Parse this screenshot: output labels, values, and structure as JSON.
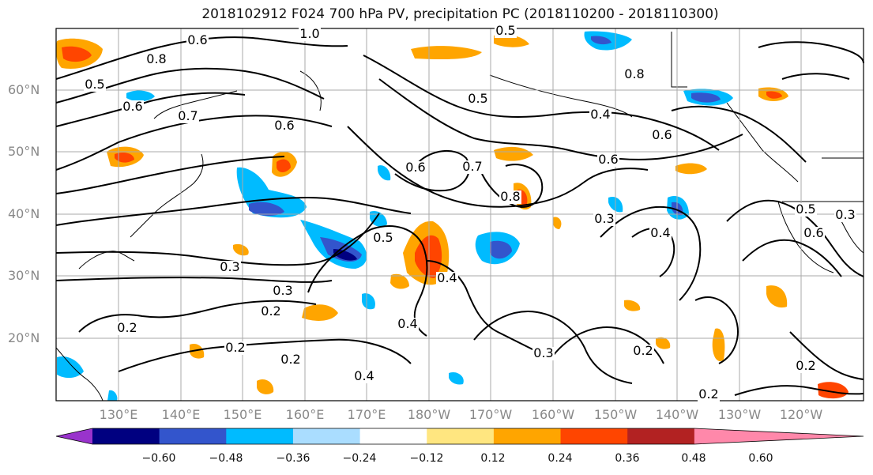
{
  "title": "2018102912 F024 700 hPa PV, precipitation PC (2018110200 - 2018110300)",
  "lat_labels": [
    "60°N",
    "50°N",
    "40°N",
    "30°N",
    "20°N"
  ],
  "lon_labels": [
    "130°E",
    "140°E",
    "150°E",
    "160°E",
    "170°E",
    "180°W",
    "170°W",
    "160°W",
    "150°W",
    "140°W",
    "130°W",
    "120°W"
  ],
  "contour_labels": [
    "1.0",
    "0.5",
    "0.8",
    "0.6",
    "0.5",
    "0.6",
    "0.7",
    "0.6",
    "0.4",
    "0.5",
    "0.6",
    "0.7",
    "0.8",
    "0.4",
    "0.8",
    "0.6",
    "0.5",
    "0.6",
    "0.3",
    "0.3",
    "0.4",
    "0.2",
    "0.3",
    "0.2",
    "0.2",
    "0.2",
    "0.4",
    "0.4",
    "0.3",
    "0.2",
    "0.2",
    "0.2",
    "0.3",
    "0.5",
    "0.6"
  ],
  "colorbar": {
    "ticks": [
      "−0.60",
      "−0.48",
      "−0.36",
      "−0.24",
      "−0.12",
      "0.12",
      "0.24",
      "0.36",
      "0.48",
      "0.60"
    ],
    "colors": [
      "#9933cc",
      "#000080",
      "#3355cc",
      "#00bbff",
      "#aaddff",
      "#ffffff",
      "#ffe680",
      "#ffa500",
      "#ff4500",
      "#b22222",
      "#ff88aa"
    ]
  },
  "colors": {
    "grid": "#aaaaaa",
    "contour": "#000000",
    "axis_label": "#888888"
  }
}
